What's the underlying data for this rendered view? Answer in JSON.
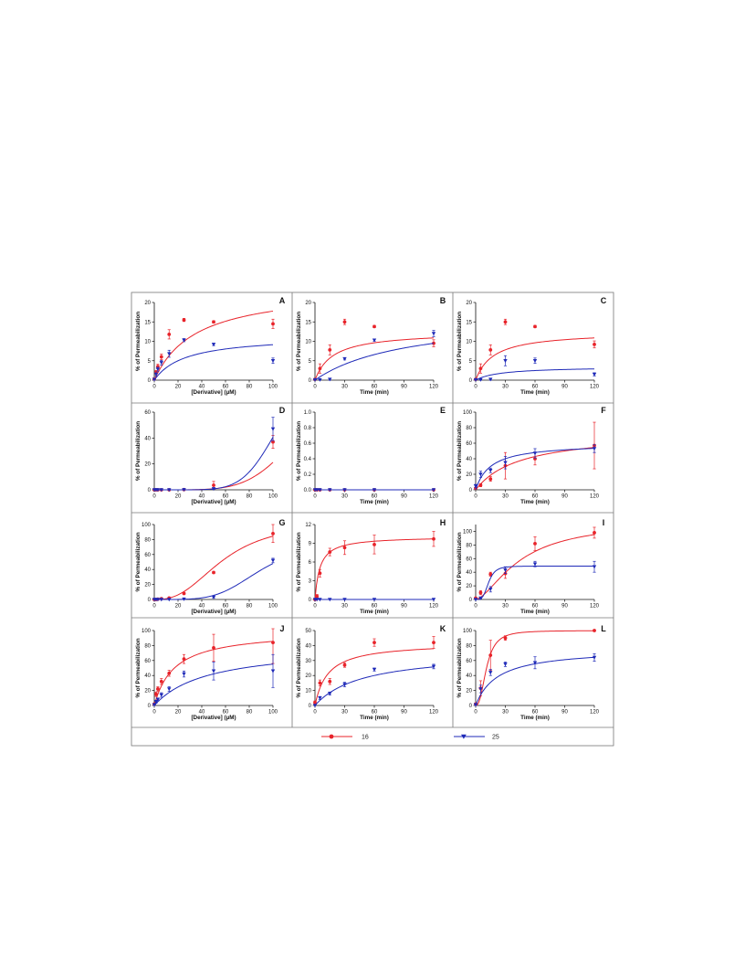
{
  "figure": {
    "colors": {
      "series_16": "#e8232a",
      "series_25": "#1f2ab8",
      "frame": "#777777",
      "axis": "#111111"
    }
  },
  "legend": {
    "items": [
      {
        "label": "16",
        "color": "#e8232a",
        "marker": "circle"
      },
      {
        "label": "25",
        "color": "#1f2ab8",
        "marker": "triangle-down"
      }
    ]
  },
  "chart_data": [
    {
      "panel": "A",
      "type": "scatter",
      "xlabel": "[Derivative] (µM)",
      "ylabel": "% of Permeabilization",
      "xlim": [
        0,
        100
      ],
      "ylim": [
        0,
        20
      ],
      "xticks": [
        0,
        20,
        40,
        60,
        80,
        100
      ],
      "yticks": [
        0,
        5,
        10,
        15,
        20
      ],
      "series": [
        {
          "name": "16",
          "x": [
            0,
            1.5,
            3,
            6,
            12.5,
            25,
            50,
            100
          ],
          "y": [
            0.3,
            2.0,
            3.5,
            6.0,
            11.8,
            15.5,
            15.0,
            14.5
          ],
          "err": [
            0.3,
            0.5,
            0.6,
            0.7,
            1.2,
            0.4,
            0.3,
            1.2
          ],
          "fit": {
            "model": "hyperbola",
            "ymax": 24,
            "k": 35
          }
        },
        {
          "name": "25",
          "x": [
            0,
            1.5,
            3,
            6,
            12.5,
            25,
            50,
            100
          ],
          "y": [
            0.2,
            1.5,
            2.8,
            4.5,
            6.8,
            10.3,
            9.2,
            5.0
          ],
          "err": [
            0.3,
            0.4,
            0.5,
            0.6,
            0.9,
            0.4,
            0.3,
            0.7
          ],
          "fit": {
            "model": "hyperbola",
            "ymax": 11.5,
            "k": 26
          }
        }
      ]
    },
    {
      "panel": "B",
      "type": "scatter",
      "xlabel": "Time (min)",
      "ylabel": "% of Permeabilization",
      "xlim": [
        0,
        120
      ],
      "ylim": [
        0,
        20
      ],
      "xticks": [
        0,
        30,
        60,
        90,
        120
      ],
      "yticks": [
        0,
        5,
        10,
        15,
        20
      ],
      "series": [
        {
          "name": "16",
          "x": [
            0,
            5,
            15,
            30,
            60,
            120
          ],
          "y": [
            0.2,
            3.0,
            7.8,
            15.0,
            13.8,
            9.5
          ],
          "err": [
            0.2,
            1.2,
            1.3,
            0.7,
            0.3,
            0.9
          ],
          "fit": {
            "model": "hyperbola",
            "ymax": 12.5,
            "k": 18
          }
        },
        {
          "name": "25",
          "x": [
            0,
            5,
            15,
            30,
            60,
            120
          ],
          "y": [
            0.1,
            0.1,
            0.2,
            5.5,
            10.3,
            12.0
          ],
          "err": [
            0.1,
            0.1,
            0.2,
            0.3,
            0.3,
            0.8
          ],
          "fit": {
            "model": "hyperbola",
            "ymax": 17,
            "k": 95
          }
        }
      ]
    },
    {
      "panel": "C",
      "type": "scatter",
      "xlabel": "Time (min)",
      "ylabel": "% of Permeabilization",
      "xlim": [
        0,
        120
      ],
      "ylim": [
        0,
        20
      ],
      "xticks": [
        0,
        30,
        60,
        90,
        120
      ],
      "yticks": [
        0,
        5,
        10,
        15,
        20
      ],
      "series": [
        {
          "name": "16",
          "x": [
            0,
            5,
            15,
            30,
            60,
            120
          ],
          "y": [
            0.2,
            3.0,
            7.8,
            15.0,
            13.8,
            9.2
          ],
          "err": [
            0.2,
            1.2,
            1.3,
            0.7,
            0.3,
            0.9
          ],
          "fit": {
            "model": "hyperbola",
            "ymax": 12.5,
            "k": 18
          }
        },
        {
          "name": "25",
          "x": [
            0,
            5,
            15,
            30,
            60,
            120
          ],
          "y": [
            0.1,
            0.1,
            0.2,
            5.0,
            5.0,
            1.5
          ],
          "err": [
            0.1,
            0.1,
            0.2,
            1.3,
            0.7,
            0.4
          ],
          "fit": {
            "model": "hyperbola",
            "ymax": 3.5,
            "k": 25
          }
        }
      ]
    },
    {
      "panel": "D",
      "type": "scatter",
      "xlabel": "[Derivative] (µM)",
      "ylabel": "% of Permeabilization",
      "xlim": [
        0,
        100
      ],
      "ylim": [
        0,
        60
      ],
      "xticks": [
        0,
        20,
        40,
        60,
        80,
        100
      ],
      "yticks": [
        0,
        20,
        40,
        60
      ],
      "series": [
        {
          "name": "16",
          "x": [
            0,
            1.5,
            3,
            6,
            12.5,
            25,
            50,
            100
          ],
          "y": [
            0,
            0,
            0,
            0,
            0,
            0.2,
            3.5,
            37
          ],
          "err": [
            0,
            0,
            0,
            0,
            0,
            0.2,
            3,
            5
          ],
          "fit": {
            "model": "sigmoid",
            "ymax": 100,
            "ec50": 130,
            "hill": 5
          }
        },
        {
          "name": "25",
          "x": [
            0,
            1.5,
            3,
            6,
            12.5,
            25,
            50,
            100
          ],
          "y": [
            0,
            0,
            0,
            0,
            0,
            0.1,
            0.8,
            47
          ],
          "err": [
            0,
            0,
            0,
            0,
            0,
            0.1,
            0.5,
            9
          ],
          "fit": {
            "model": "sigmoid",
            "ymax": 100,
            "ec50": 106,
            "hill": 6.5
          }
        }
      ]
    },
    {
      "panel": "E",
      "type": "scatter",
      "xlabel": "Time (min)",
      "ylabel": "% of Permeabilization",
      "xlim": [
        0,
        120
      ],
      "ylim": [
        0,
        1.0
      ],
      "xticks": [
        0,
        30,
        60,
        90,
        120
      ],
      "yticks": [
        0.0,
        0.2,
        0.4,
        0.6,
        0.8,
        1.0
      ],
      "series": [
        {
          "name": "16",
          "x": [
            0,
            2,
            5,
            15,
            30,
            60,
            120
          ],
          "y": [
            0,
            0,
            0,
            0,
            0,
            0,
            0
          ],
          "err": [
            0,
            0,
            0,
            0,
            0,
            0,
            0
          ],
          "fit": {
            "model": "hyperbola",
            "ymax": 0,
            "k": 1
          }
        },
        {
          "name": "25",
          "x": [
            0,
            2,
            5,
            15,
            30,
            60,
            120
          ],
          "y": [
            0,
            0,
            0,
            0,
            0,
            0,
            0
          ],
          "err": [
            0,
            0,
            0,
            0,
            0,
            0,
            0
          ],
          "fit": {
            "model": "hyperbola",
            "ymax": 0,
            "k": 1
          }
        }
      ]
    },
    {
      "panel": "F",
      "type": "scatter",
      "xlabel": "Time (min)",
      "ylabel": "% of Permeabilization",
      "xlim": [
        0,
        120
      ],
      "ylim": [
        0,
        100
      ],
      "xticks": [
        0,
        30,
        60,
        90,
        120
      ],
      "yticks": [
        0,
        20,
        40,
        60,
        80,
        100
      ],
      "series": [
        {
          "name": "16",
          "x": [
            0,
            5,
            15,
            30,
            60,
            120
          ],
          "y": [
            2,
            6,
            14,
            31,
            40,
            57
          ],
          "err": [
            1,
            2,
            3,
            17,
            8,
            30
          ],
          "fit": {
            "model": "hyperbola",
            "ymax": 75,
            "k": 45
          }
        },
        {
          "name": "25",
          "x": [
            0,
            5,
            15,
            30,
            60,
            120
          ],
          "y": [
            5,
            20,
            25,
            35,
            47,
            53
          ],
          "err": [
            2,
            4,
            3,
            8,
            6,
            5
          ],
          "fit": {
            "model": "hyperbola",
            "ymax": 60,
            "k": 15
          }
        }
      ]
    },
    {
      "panel": "G",
      "type": "scatter",
      "xlabel": "[Derivative] (µM)",
      "ylabel": "% of Permeabilization",
      "xlim": [
        0,
        100
      ],
      "ylim": [
        0,
        100
      ],
      "xticks": [
        0,
        20,
        40,
        60,
        80,
        100
      ],
      "yticks": [
        0,
        20,
        40,
        60,
        80,
        100
      ],
      "series": [
        {
          "name": "16",
          "x": [
            0,
            1.5,
            3,
            6,
            12.5,
            25,
            50,
            100
          ],
          "y": [
            0,
            0,
            0.5,
            1,
            2,
            8,
            36,
            88
          ],
          "err": [
            0,
            0,
            0.3,
            0.5,
            0.5,
            1,
            1.5,
            12
          ],
          "fit": {
            "model": "sigmoid",
            "ymax": 105,
            "ec50": 58,
            "hill": 2.6
          }
        },
        {
          "name": "25",
          "x": [
            0,
            1.5,
            3,
            6,
            12.5,
            25,
            50,
            100
          ],
          "y": [
            0,
            0,
            0,
            0,
            0,
            0.5,
            3,
            52
          ],
          "err": [
            0,
            0,
            0,
            0,
            0,
            0.3,
            1,
            3
          ],
          "fit": {
            "model": "sigmoid",
            "ymax": 75,
            "ec50": 88,
            "hill": 4.5
          }
        }
      ]
    },
    {
      "panel": "H",
      "type": "scatter",
      "xlabel": "Time (min)",
      "ylabel": "% of Permeabilization",
      "xlim": [
        0,
        120
      ],
      "ylim": [
        0,
        12
      ],
      "xticks": [
        0,
        30,
        60,
        90,
        120
      ],
      "yticks": [
        0,
        3,
        6,
        9,
        12
      ],
      "series": [
        {
          "name": "16",
          "x": [
            0,
            2,
            5,
            15,
            30,
            60,
            120
          ],
          "y": [
            0,
            0.5,
            4.2,
            7.6,
            8.3,
            8.8,
            9.7
          ],
          "err": [
            0,
            0.3,
            0.6,
            0.6,
            1.1,
            1.5,
            1.2
          ],
          "fit": {
            "model": "hyperbola",
            "ymax": 10.1,
            "k": 5
          }
        },
        {
          "name": "25",
          "x": [
            0,
            2,
            5,
            15,
            30,
            60,
            120
          ],
          "y": [
            0,
            0,
            0,
            0,
            0,
            0,
            0
          ],
          "err": [
            0,
            0,
            0,
            0,
            0,
            0,
            0
          ],
          "fit": {
            "model": "hyperbola",
            "ymax": 0,
            "k": 1
          }
        }
      ]
    },
    {
      "panel": "I",
      "type": "scatter",
      "xlabel": "Time (min)",
      "ylabel": "% of Permeabilization",
      "xlim": [
        0,
        120
      ],
      "ylim": [
        0,
        110
      ],
      "xticks": [
        0,
        30,
        60,
        90,
        120
      ],
      "yticks": [
        0,
        20,
        40,
        60,
        80,
        100
      ],
      "series": [
        {
          "name": "16",
          "x": [
            0,
            5,
            15,
            30,
            60,
            120
          ],
          "y": [
            2,
            10,
            37,
            38,
            82,
            98
          ],
          "err": [
            1,
            3,
            3,
            7,
            10,
            8
          ],
          "fit": {
            "model": "sigmoid",
            "ymax": 115,
            "ec50": 45,
            "hill": 1.6
          }
        },
        {
          "name": "25",
          "x": [
            0,
            5,
            15,
            30,
            60,
            120
          ],
          "y": [
            0,
            2,
            15,
            43,
            52,
            48
          ],
          "err": [
            0,
            1,
            4,
            5,
            4,
            8
          ],
          "fit": {
            "model": "sigmoid",
            "ymax": 49,
            "ec50": 13,
            "hill": 4
          }
        }
      ]
    },
    {
      "panel": "J",
      "type": "scatter",
      "xlabel": "[Derivative] (µM)",
      "ylabel": "% of Permeabilization",
      "xlim": [
        0,
        100
      ],
      "ylim": [
        0,
        100
      ],
      "xticks": [
        0,
        20,
        40,
        60,
        80,
        100
      ],
      "yticks": [
        0,
        20,
        40,
        60,
        80,
        100
      ],
      "series": [
        {
          "name": "16",
          "x": [
            0,
            1.5,
            3,
            6,
            12.5,
            25,
            50,
            100
          ],
          "y": [
            2,
            15,
            22,
            32,
            43,
            62,
            77,
            84
          ],
          "err": [
            1,
            3,
            3,
            4,
            4,
            6,
            18,
            28
          ],
          "fit": {
            "model": "hyperbola",
            "ymax": 100,
            "k": 17
          }
        },
        {
          "name": "25",
          "x": [
            0,
            1.5,
            3,
            6,
            12.5,
            25,
            50,
            100
          ],
          "y": [
            1,
            5,
            8,
            14,
            22,
            42,
            46,
            46
          ],
          "err": [
            1,
            2,
            2,
            3,
            3,
            4,
            12,
            22
          ],
          "fit": {
            "model": "hyperbola",
            "ymax": 80,
            "k": 45
          }
        }
      ]
    },
    {
      "panel": "K",
      "type": "scatter",
      "xlabel": "Time (min)",
      "ylabel": "% of Permeabilization",
      "xlim": [
        0,
        120
      ],
      "ylim": [
        0,
        50
      ],
      "xticks": [
        0,
        30,
        60,
        90,
        120
      ],
      "yticks": [
        0,
        10,
        20,
        30,
        40,
        50
      ],
      "series": [
        {
          "name": "16",
          "x": [
            0,
            5,
            15,
            30,
            60,
            120
          ],
          "y": [
            2,
            15,
            16,
            27,
            42,
            42
          ],
          "err": [
            1,
            2,
            2,
            1.5,
            2.5,
            4
          ],
          "fit": {
            "model": "hyperbola",
            "ymax": 42,
            "k": 13
          }
        },
        {
          "name": "25",
          "x": [
            0,
            5,
            15,
            30,
            60,
            120
          ],
          "y": [
            0,
            5,
            8,
            14,
            24,
            26
          ],
          "err": [
            0,
            1,
            1,
            1.5,
            1,
            1.5
          ],
          "fit": {
            "model": "hyperbola",
            "ymax": 36,
            "k": 48
          }
        }
      ]
    },
    {
      "panel": "L",
      "type": "scatter",
      "xlabel": "Time (min)",
      "ylabel": "% of Permeabilization",
      "xlim": [
        0,
        120
      ],
      "ylim": [
        0,
        100
      ],
      "xticks": [
        0,
        30,
        60,
        90,
        120
      ],
      "yticks": [
        0,
        20,
        40,
        60,
        80,
        100
      ],
      "series": [
        {
          "name": "16",
          "x": [
            0,
            5,
            15,
            30,
            120
          ],
          "y": [
            2,
            23,
            67,
            90,
            100
          ],
          "err": [
            1,
            10,
            20,
            3,
            1
          ],
          "fit": {
            "model": "sigmoid",
            "ymax": 100,
            "ec50": 11,
            "hill": 2.5
          }
        },
        {
          "name": "25",
          "x": [
            0,
            5,
            15,
            30,
            60,
            120
          ],
          "y": [
            1,
            22,
            44,
            55,
            57,
            64
          ],
          "err": [
            1,
            5,
            4,
            3,
            8,
            5
          ],
          "fit": {
            "model": "hyperbola",
            "ymax": 76,
            "k": 22
          }
        }
      ]
    }
  ]
}
